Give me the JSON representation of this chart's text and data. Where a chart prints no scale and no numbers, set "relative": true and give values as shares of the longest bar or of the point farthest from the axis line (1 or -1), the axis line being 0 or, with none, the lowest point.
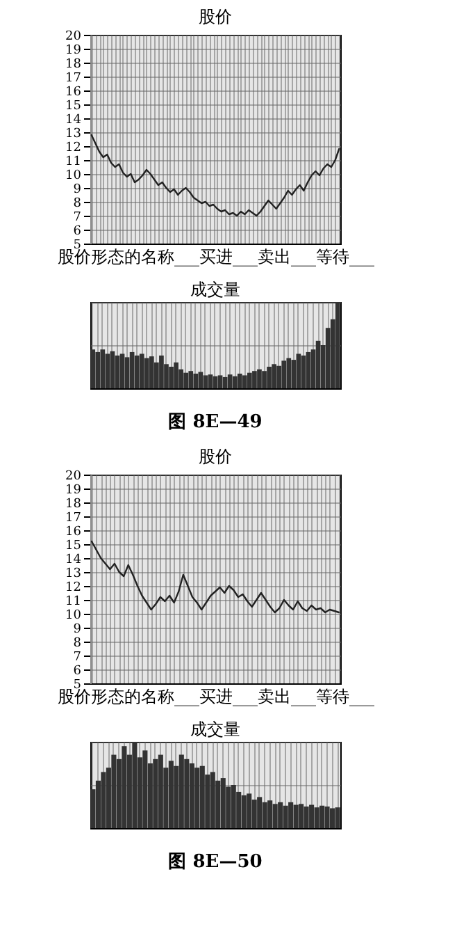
{
  "chart_data": [
    {
      "type": "line",
      "title": "股价",
      "xlabel": "股价形态的名称___买进___卖出___等待___",
      "ylim": [
        5,
        20
      ],
      "yticks": [
        5,
        6,
        7,
        8,
        9,
        10,
        11,
        12,
        13,
        14,
        15,
        16,
        17,
        18,
        19,
        20
      ],
      "grid": true,
      "tick_labels": "y",
      "categories": [
        null,
        null,
        null,
        null,
        null,
        null,
        null,
        null,
        null,
        null,
        null,
        null,
        null,
        null,
        null,
        null,
        null,
        null,
        null,
        null,
        null,
        null,
        null,
        null,
        null,
        null,
        null,
        null,
        null,
        null,
        null,
        null,
        null,
        null,
        null,
        null,
        null,
        null,
        null,
        null,
        null,
        null,
        null,
        null,
        null,
        null,
        null,
        null,
        null,
        null,
        null,
        null,
        null,
        null,
        null,
        null,
        null,
        null,
        null,
        null,
        null,
        null,
        null,
        null
      ],
      "series": [
        {
          "color": "#222222",
          "values": [
            12.8,
            12.2,
            11.6,
            11.2,
            11.4,
            10.8,
            10.5,
            10.7,
            10.1,
            9.8,
            10.0,
            9.4,
            9.6,
            9.9,
            10.3,
            10.0,
            9.6,
            9.2,
            9.4,
            9.0,
            8.7,
            8.9,
            8.5,
            8.8,
            9.0,
            8.7,
            8.3,
            8.1,
            7.9,
            8.0,
            7.7,
            7.8,
            7.5,
            7.3,
            7.4,
            7.1,
            7.2,
            7.0,
            7.3,
            7.1,
            7.4,
            7.2,
            7.0,
            7.3,
            7.7,
            8.1,
            7.8,
            7.5,
            7.9,
            8.3,
            8.8,
            8.5,
            8.9,
            9.2,
            8.8,
            9.4,
            9.9,
            10.2,
            9.9,
            10.4,
            10.7,
            10.5,
            11.0,
            11.8
          ]
        }
      ]
    },
    {
      "type": "bar",
      "title": "成交量",
      "relative": true,
      "grid": true,
      "tick_labels": false,
      "annotations": [
        "图 8E—49"
      ],
      "categories": [
        null,
        null,
        null,
        null,
        null,
        null,
        null,
        null,
        null,
        null,
        null,
        null,
        null,
        null,
        null,
        null,
        null,
        null,
        null,
        null,
        null,
        null,
        null,
        null,
        null,
        null,
        null,
        null,
        null,
        null,
        null,
        null,
        null,
        null,
        null,
        null,
        null,
        null,
        null,
        null,
        null,
        null,
        null,
        null,
        null,
        null,
        null,
        null,
        null,
        null,
        null
      ],
      "series": [
        {
          "color": "#333333",
          "values": [
            0.45,
            0.42,
            0.45,
            0.4,
            0.43,
            0.38,
            0.4,
            0.36,
            0.42,
            0.38,
            0.4,
            0.35,
            0.37,
            0.3,
            0.38,
            0.28,
            0.25,
            0.3,
            0.22,
            0.18,
            0.2,
            0.17,
            0.19,
            0.15,
            0.16,
            0.14,
            0.15,
            0.13,
            0.16,
            0.14,
            0.17,
            0.15,
            0.18,
            0.2,
            0.22,
            0.2,
            0.25,
            0.28,
            0.26,
            0.32,
            0.35,
            0.33,
            0.4,
            0.38,
            0.42,
            0.45,
            0.55,
            0.5,
            0.7,
            0.8,
            1.0
          ]
        }
      ]
    },
    {
      "type": "line",
      "title": "股价",
      "xlabel": "股价形态的名称___买进___卖出___等待___",
      "ylim": [
        5,
        20
      ],
      "yticks": [
        5,
        6,
        7,
        8,
        9,
        10,
        11,
        12,
        13,
        14,
        15,
        16,
        17,
        18,
        19,
        20
      ],
      "grid": true,
      "tick_labels": "y",
      "categories": [
        null,
        null,
        null,
        null,
        null,
        null,
        null,
        null,
        null,
        null,
        null,
        null,
        null,
        null,
        null,
        null,
        null,
        null,
        null,
        null,
        null,
        null,
        null,
        null,
        null,
        null,
        null,
        null,
        null,
        null,
        null,
        null,
        null,
        null,
        null,
        null,
        null,
        null,
        null,
        null,
        null,
        null,
        null,
        null,
        null,
        null,
        null,
        null,
        null,
        null,
        null,
        null,
        null,
        null,
        null
      ],
      "series": [
        {
          "color": "#222222",
          "values": [
            15.2,
            14.6,
            14.0,
            13.6,
            13.2,
            13.6,
            13.0,
            12.7,
            13.5,
            12.8,
            12.0,
            11.3,
            10.8,
            10.3,
            10.7,
            11.2,
            10.9,
            11.3,
            10.8,
            11.6,
            12.8,
            12.0,
            11.2,
            10.8,
            10.3,
            10.8,
            11.3,
            11.6,
            11.9,
            11.5,
            12.0,
            11.7,
            11.2,
            11.4,
            10.9,
            10.5,
            11.0,
            11.5,
            11.0,
            10.5,
            10.1,
            10.4,
            11.0,
            10.6,
            10.3,
            10.9,
            10.4,
            10.2,
            10.6,
            10.3,
            10.4,
            10.1,
            10.3,
            10.2,
            10.1
          ]
        }
      ]
    },
    {
      "type": "bar",
      "title": "成交量",
      "relative": true,
      "grid": true,
      "tick_labels": false,
      "annotations": [
        "图 8E—50"
      ],
      "categories": [
        null,
        null,
        null,
        null,
        null,
        null,
        null,
        null,
        null,
        null,
        null,
        null,
        null,
        null,
        null,
        null,
        null,
        null,
        null,
        null,
        null,
        null,
        null,
        null,
        null,
        null,
        null,
        null,
        null,
        null,
        null,
        null,
        null,
        null,
        null,
        null,
        null,
        null,
        null,
        null,
        null,
        null,
        null,
        null,
        null,
        null,
        null,
        null
      ],
      "series": [
        {
          "color": "#333333",
          "values": [
            0.45,
            0.55,
            0.65,
            0.7,
            0.85,
            0.8,
            0.95,
            0.85,
            1.0,
            0.82,
            0.9,
            0.75,
            0.8,
            0.85,
            0.7,
            0.78,
            0.72,
            0.85,
            0.8,
            0.75,
            0.7,
            0.72,
            0.62,
            0.65,
            0.55,
            0.58,
            0.48,
            0.5,
            0.42,
            0.38,
            0.4,
            0.33,
            0.36,
            0.3,
            0.32,
            0.28,
            0.3,
            0.26,
            0.3,
            0.27,
            0.28,
            0.25,
            0.27,
            0.24,
            0.26,
            0.25,
            0.23,
            0.24
          ]
        }
      ]
    }
  ]
}
